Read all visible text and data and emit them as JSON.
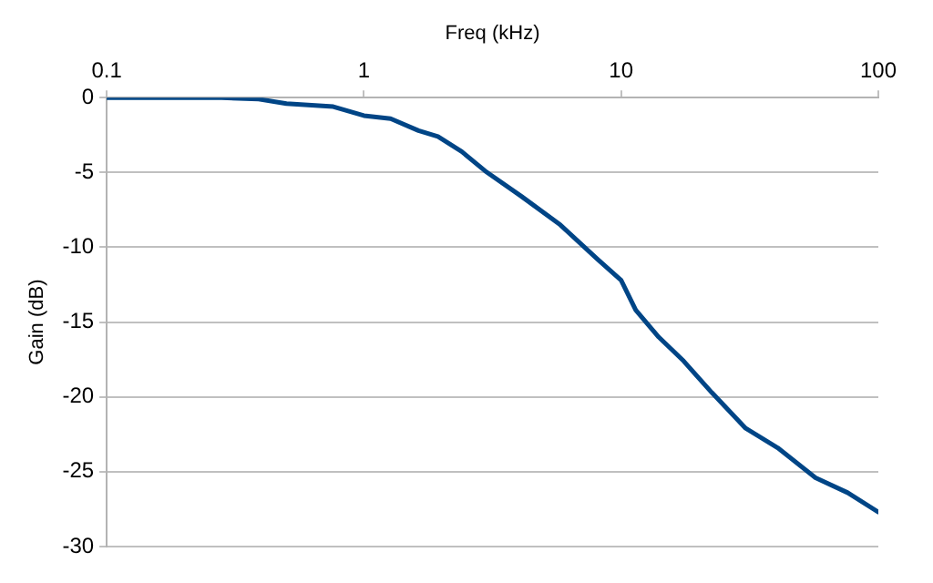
{
  "chart_data": {
    "type": "line",
    "xlabel": "Freq (kHz)",
    "ylabel": "Gain (dB)",
    "log": "x",
    "grid": "y",
    "legend": false,
    "marker": "none",
    "line_style": "solid",
    "xlim": [
      0.1,
      100
    ],
    "xticks": [
      0.1,
      1,
      10,
      100
    ],
    "ylim": [
      -30,
      0
    ],
    "yticks": [
      -30,
      -25,
      -20,
      -15,
      -10,
      -5,
      0
    ],
    "x": [
      0.1,
      0.28,
      0.39,
      0.5,
      0.76,
      1.0,
      1.27,
      1.63,
      1.94,
      2.4,
      2.96,
      4.1,
      5.8,
      8.1,
      10,
      11.4,
      14,
      17.5,
      22.5,
      30.5,
      40.6,
      57,
      76,
      100
    ],
    "series": [
      {
        "color": "#004586",
        "values": [
          0,
          0,
          -0.1,
          -0.4,
          -0.6,
          -1.2,
          -1.4,
          -2.2,
          -2.6,
          -3.6,
          -4.9,
          -6.6,
          -8.5,
          -10.8,
          -12.2,
          -14.2,
          -16,
          -17.6,
          -19.7,
          -22.1,
          -23.4,
          -25.4,
          -26.4,
          -27.7
        ]
      }
    ]
  }
}
